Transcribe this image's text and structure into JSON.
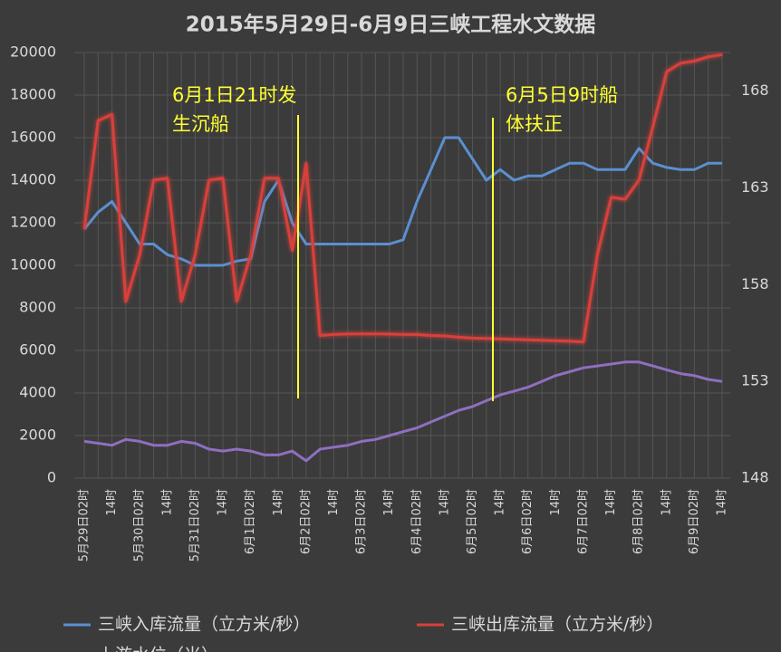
{
  "chart_data": {
    "type": "line",
    "title": "2015年5月29日-6月9日三峡工程水文数据",
    "categories": [
      "5月29日02时",
      null,
      "14时",
      null,
      "5月30日02时",
      null,
      "14时",
      null,
      "5月31日02时",
      null,
      "14时",
      null,
      "6月1日02时",
      null,
      "14时",
      null,
      "6月2日02时",
      null,
      "14时",
      null,
      "6月3日02时",
      null,
      "14时",
      null,
      "6月4日02时",
      null,
      "14时",
      null,
      "6月5日02时",
      null,
      "14时",
      null,
      "6月6日02时",
      null,
      "14时",
      null,
      "6月7日02时",
      null,
      "14时",
      null,
      "6月8日02时",
      null,
      "14时",
      null,
      "6月9日02时",
      null,
      "14时"
    ],
    "series": [
      {
        "name": "三峡入库流量（立方米/秒）",
        "color": "#5b8fd0",
        "values": [
          11700,
          12500,
          13000,
          12000,
          11000,
          11000,
          10500,
          10300,
          10000,
          10000,
          10000,
          10200,
          10300,
          13000,
          14000,
          12000,
          11000,
          11000,
          11000,
          11000,
          11000,
          11000,
          11000,
          11200,
          13000,
          14500,
          16000,
          16000,
          15000,
          14000,
          14500,
          14000,
          14200,
          14200,
          14500,
          14800,
          14800,
          14500,
          14500,
          14500,
          15500,
          14800,
          14600,
          14500,
          14500,
          14800,
          14800
        ]
      },
      {
        "name": "三峡出库流量（立方米/秒）",
        "color": "#d9403a",
        "values": [
          11700,
          16800,
          17100,
          8300,
          10500,
          14000,
          14100,
          8300,
          10500,
          14000,
          14100,
          8300,
          10500,
          14100,
          14100,
          10700,
          14800,
          6700,
          6750,
          6780,
          6780,
          6780,
          6770,
          6750,
          6750,
          6700,
          6680,
          6620,
          6580,
          6560,
          6540,
          6520,
          6500,
          6480,
          6460,
          6440,
          6400,
          10500,
          13200,
          13100,
          14000,
          16500,
          19100,
          19500,
          19600,
          19800,
          19900
        ]
      },
      {
        "name": "上游水位（米）",
        "color": "#8e6fc0",
        "axis": "y2",
        "values": [
          149.9,
          149.8,
          149.7,
          150.0,
          149.9,
          149.7,
          149.7,
          149.9,
          149.8,
          149.5,
          149.4,
          149.5,
          149.4,
          149.2,
          149.2,
          149.4,
          148.9,
          149.5,
          149.6,
          149.7,
          149.9,
          150.0,
          150.2,
          150.4,
          150.6,
          150.9,
          151.2,
          151.5,
          151.7,
          152.0,
          152.3,
          152.5,
          152.7,
          153.0,
          153.3,
          153.5,
          153.7,
          153.8,
          153.9,
          154.0,
          154.0,
          153.8,
          153.6,
          153.4,
          153.3,
          153.1,
          153.0
        ]
      }
    ],
    "ylim": [
      0,
      20000
    ],
    "yticks": [
      0,
      2000,
      4000,
      6000,
      8000,
      10000,
      12000,
      14000,
      16000,
      18000,
      20000
    ],
    "y2lim": [
      148,
      170
    ],
    "y2ticks": [
      148,
      153,
      158,
      163,
      168
    ],
    "grid": true,
    "legend": "bottom",
    "annotations": [
      {
        "lines": [
          "6月1日21时发",
          "生沉船"
        ],
        "color": "#ffff33"
      },
      {
        "lines": [
          "6月5日9时船",
          "体扶正"
        ],
        "color": "#ffff33"
      }
    ]
  }
}
